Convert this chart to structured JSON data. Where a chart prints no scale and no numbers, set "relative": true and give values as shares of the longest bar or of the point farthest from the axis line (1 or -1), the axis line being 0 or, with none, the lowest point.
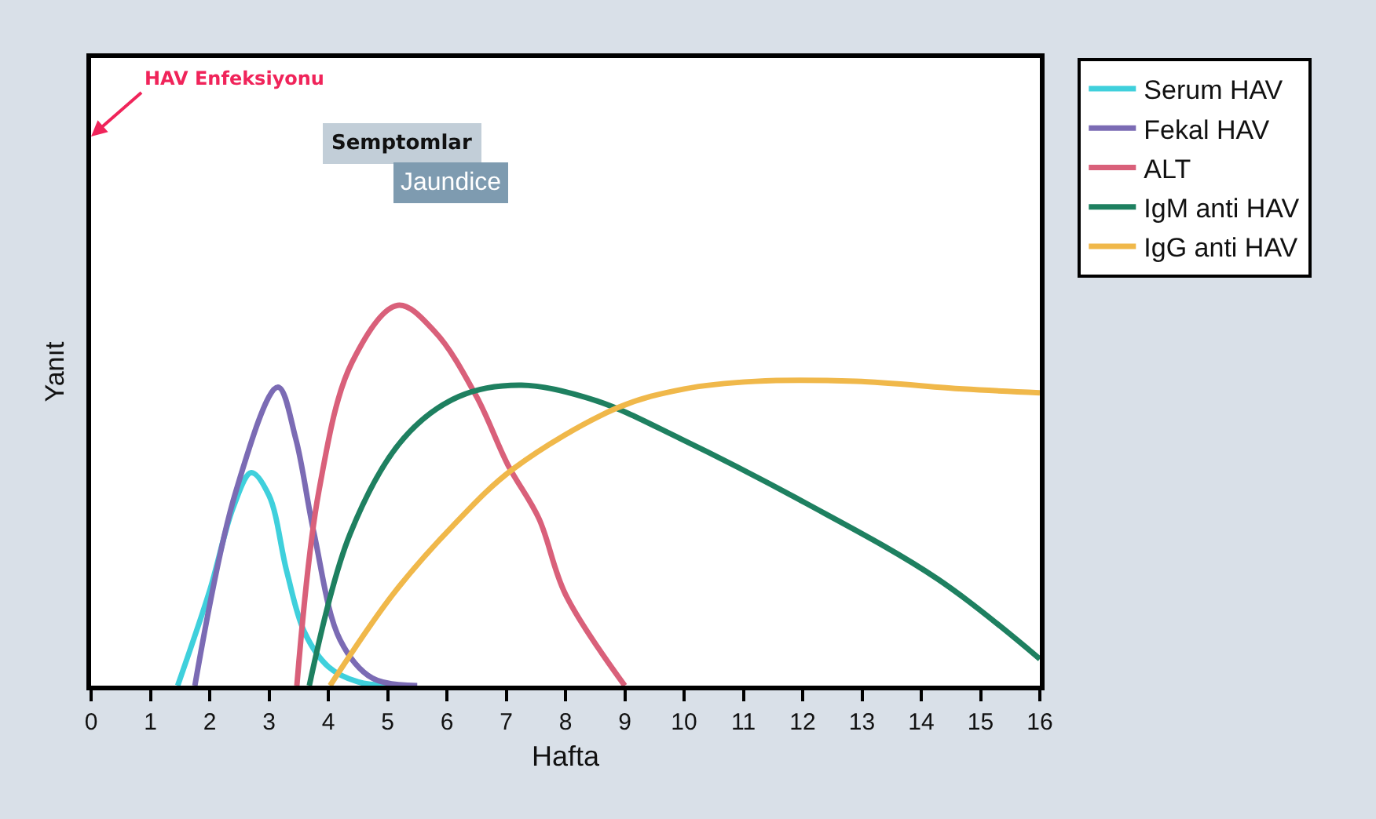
{
  "chart_data": {
    "type": "line",
    "relative": true,
    "xlabel": "Hafta",
    "ylabel": "Yanıt",
    "xlim": [
      0,
      16
    ],
    "xticks": [
      0,
      1,
      2,
      3,
      4,
      5,
      6,
      7,
      8,
      9,
      10,
      11,
      12,
      13,
      14,
      15,
      16
    ],
    "grid": false,
    "legend": "right",
    "marker": "none",
    "line_style": "solid",
    "annotations": [
      "HAV Enfeksiyonu",
      "Semptomlar",
      "Jaundice"
    ],
    "series": [
      {
        "name": "Serum HAV",
        "color": "#3fd0dc",
        "x": [
          1.46,
          2.0,
          2.4,
          2.7,
          3.0,
          3.3,
          3.6,
          4.0,
          4.5,
          5.0
        ],
        "values": [
          0,
          0.25,
          0.47,
          0.56,
          0.5,
          0.3,
          0.14,
          0.05,
          0.01,
          0
        ]
      },
      {
        "name": "Fekal HAV",
        "color": "#7b6bb4",
        "x": [
          1.75,
          2.44,
          3.15,
          3.45,
          3.76,
          4.2,
          4.74,
          5.5
        ],
        "values": [
          0,
          0.51,
          0.785,
          0.65,
          0.4,
          0.12,
          0.02,
          0
        ]
      },
      {
        "name": "ALT",
        "color": "#d9607a",
        "x": [
          3.47,
          3.84,
          4.4,
          5.17,
          5.8,
          6.5,
          7.03,
          7.55,
          8.0,
          9.0
        ],
        "values": [
          0,
          0.51,
          0.85,
          1,
          0.93,
          0.76,
          0.58,
          0.44,
          0.24,
          0
        ]
      },
      {
        "name": "IgM anti HAV",
        "color": "#1e8060",
        "x": [
          3.68,
          4.37,
          5.27,
          6.2,
          7.26,
          8.5,
          9.93,
          12.05,
          14.28,
          16
        ],
        "values": [
          0,
          0.4,
          0.65,
          0.76,
          0.79,
          0.75,
          0.65,
          0.48,
          0.28,
          0.07
        ]
      },
      {
        "name": "IgG anti HAV",
        "color": "#f0b84a",
        "x": [
          4.03,
          5.09,
          6.1,
          7.12,
          8.87,
          10.0,
          11.2,
          12.9,
          14.7,
          16
        ],
        "values": [
          0,
          0.24,
          0.42,
          0.57,
          0.73,
          0.78,
          0.8,
          0.8,
          0.78,
          0.77
        ]
      }
    ]
  }
}
